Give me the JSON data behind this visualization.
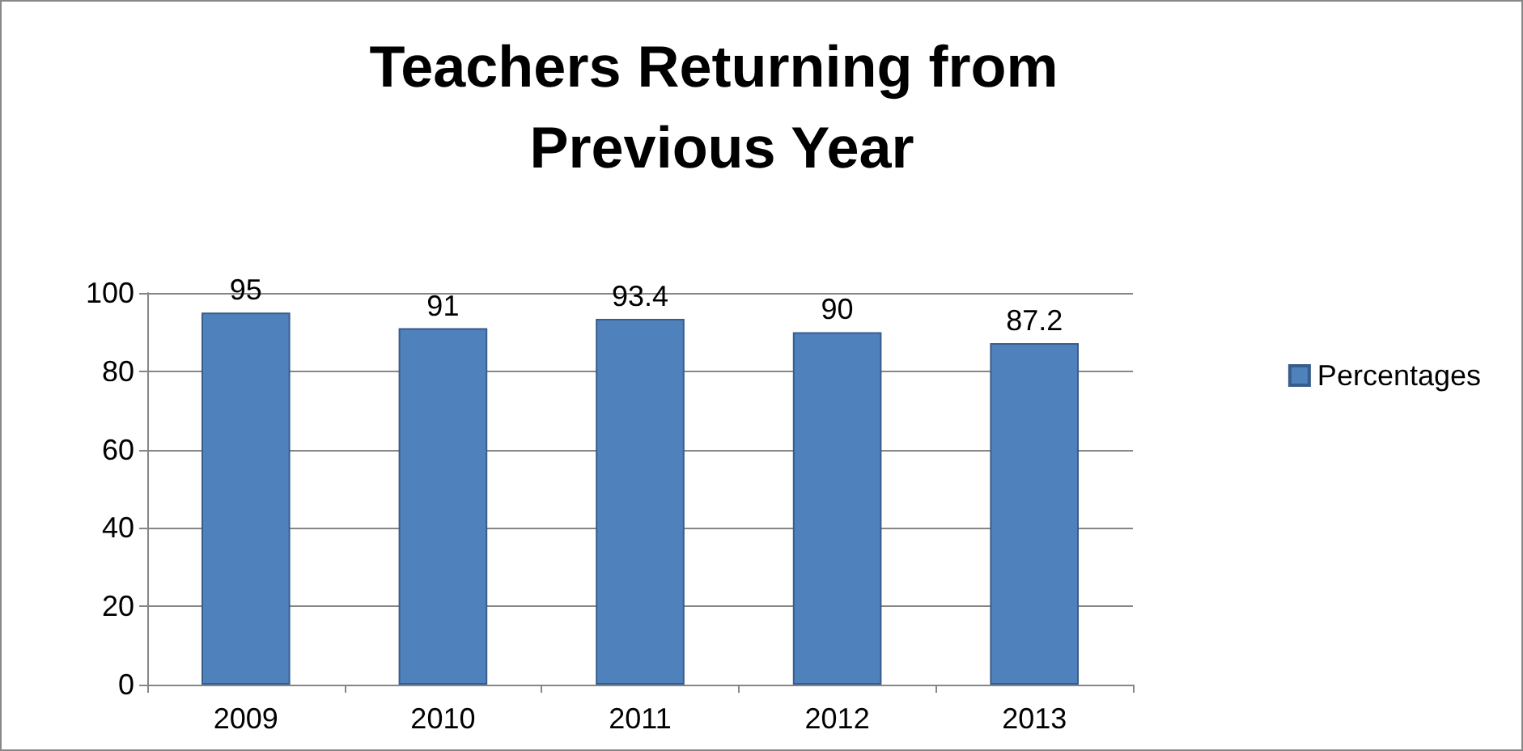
{
  "chart_data": {
    "type": "bar",
    "title": "Teachers Returning from Previous Year",
    "categories": [
      "2009",
      "2010",
      "2011",
      "2012",
      "2013"
    ],
    "series": [
      {
        "name": "Percentages",
        "color": "#4f81bd",
        "values": [
          95,
          91,
          93.4,
          90,
          87.2
        ]
      }
    ],
    "ylim": [
      0,
      100
    ],
    "yticks": [
      0,
      20,
      40,
      60,
      80,
      100
    ],
    "grid": "y",
    "legend": "right",
    "data_labels": true
  }
}
